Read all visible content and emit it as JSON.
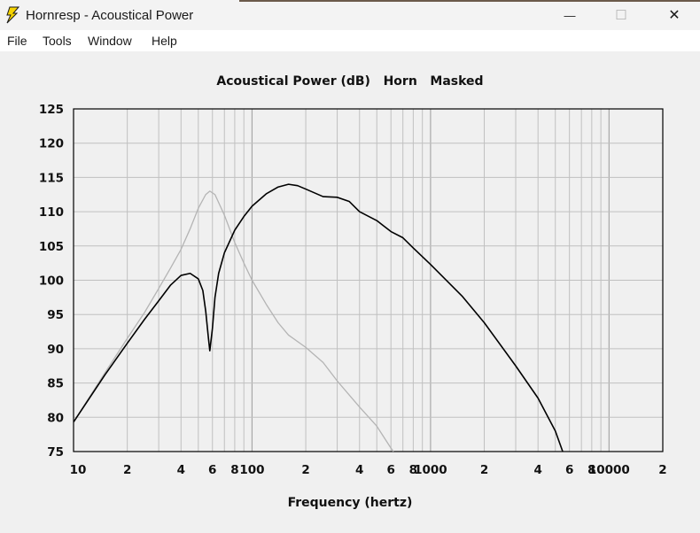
{
  "window": {
    "title": "Hornresp - Acoustical Power",
    "minimize_glyph": "—",
    "maximize_glyph": "☐",
    "close_glyph": "✕"
  },
  "menu": {
    "items": [
      "File",
      "Tools",
      "Window",
      "Help"
    ]
  },
  "colors": {
    "main_curve": "#000000",
    "masked_curve": "#b4b4b4",
    "grid": "#c0c0c0",
    "grid_major": "#a8a8a8"
  },
  "chart_data": {
    "type": "line",
    "title": "Acoustical Power (dB)   Horn   Masked",
    "xlabel": "Frequency (hertz)",
    "ylabel": "",
    "x_scale": "log",
    "xlim": [
      10,
      20000
    ],
    "ylim": [
      75,
      125
    ],
    "grid": true,
    "y_ticks": [
      125,
      120,
      115,
      110,
      105,
      100,
      95,
      90,
      85,
      80,
      75
    ],
    "x_tick_labels": [
      {
        "x": 10,
        "label": "10"
      },
      {
        "x": 20,
        "label": "2"
      },
      {
        "x": 40,
        "label": "4"
      },
      {
        "x": 60,
        "label": "6"
      },
      {
        "x": 80,
        "label": "8"
      },
      {
        "x": 100,
        "label": "100"
      },
      {
        "x": 200,
        "label": "2"
      },
      {
        "x": 400,
        "label": "4"
      },
      {
        "x": 600,
        "label": "6"
      },
      {
        "x": 800,
        "label": "8"
      },
      {
        "x": 1000,
        "label": "1000"
      },
      {
        "x": 2000,
        "label": "2"
      },
      {
        "x": 4000,
        "label": "4"
      },
      {
        "x": 6000,
        "label": "6"
      },
      {
        "x": 8000,
        "label": "8"
      },
      {
        "x": 10000,
        "label": "10000"
      },
      {
        "x": 20000,
        "label": "2"
      }
    ],
    "series": [
      {
        "points": [
          [
            10,
            79.3
          ],
          [
            15,
            86.2
          ],
          [
            20,
            90.8
          ],
          [
            25,
            94.3
          ],
          [
            30,
            97
          ],
          [
            35,
            99.3
          ],
          [
            40,
            100.7
          ],
          [
            45,
            101
          ],
          [
            50,
            100.2
          ],
          [
            53,
            98.5
          ],
          [
            55,
            95.5
          ],
          [
            57,
            91.5
          ],
          [
            58,
            89.7
          ],
          [
            60,
            93
          ],
          [
            62,
            97.5
          ],
          [
            65,
            101
          ],
          [
            70,
            104
          ],
          [
            80,
            107.3
          ],
          [
            90,
            109.3
          ],
          [
            100,
            110.8
          ],
          [
            120,
            112.6
          ],
          [
            140,
            113.6
          ],
          [
            160,
            114
          ],
          [
            180,
            113.8
          ],
          [
            200,
            113.3
          ],
          [
            250,
            112.2
          ],
          [
            300,
            112.1
          ],
          [
            350,
            111.5
          ],
          [
            400,
            110
          ],
          [
            500,
            108.7
          ],
          [
            600,
            107.1
          ],
          [
            700,
            106.2
          ],
          [
            800,
            104.7
          ],
          [
            1000,
            102.3
          ],
          [
            1500,
            97.7
          ],
          [
            2000,
            93.8
          ],
          [
            3000,
            87.5
          ],
          [
            4000,
            82.8
          ],
          [
            5000,
            78
          ],
          [
            5500,
            75
          ]
        ]
      },
      {
        "points": [
          [
            10,
            79.3
          ],
          [
            15,
            86.5
          ],
          [
            20,
            91.5
          ],
          [
            25,
            95.3
          ],
          [
            30,
            98.8
          ],
          [
            35,
            101.8
          ],
          [
            40,
            104.5
          ],
          [
            45,
            107.5
          ],
          [
            50,
            110.5
          ],
          [
            55,
            112.5
          ],
          [
            58,
            113
          ],
          [
            62,
            112.5
          ],
          [
            70,
            109.5
          ],
          [
            80,
            105.5
          ],
          [
            90,
            102.5
          ],
          [
            100,
            100
          ],
          [
            120,
            96.5
          ],
          [
            140,
            93.8
          ],
          [
            160,
            92
          ],
          [
            200,
            90.2
          ],
          [
            250,
            88
          ],
          [
            300,
            85.3
          ],
          [
            400,
            81.5
          ],
          [
            500,
            78.7
          ],
          [
            600,
            75.5
          ],
          [
            620,
            75
          ]
        ]
      }
    ]
  }
}
